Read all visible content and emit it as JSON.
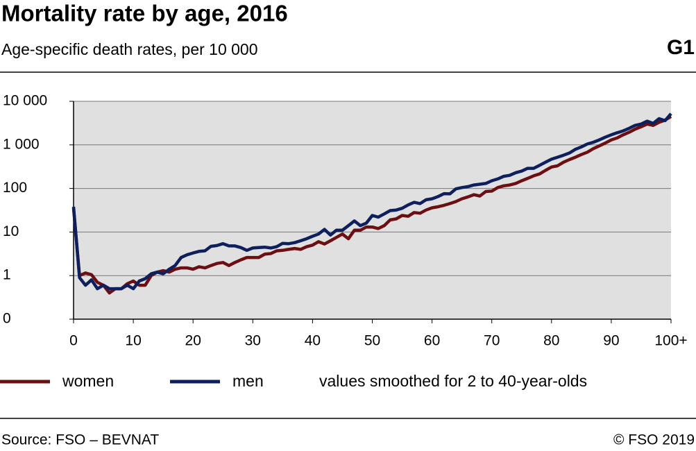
{
  "chart_data": {
    "type": "line",
    "title": "Mortality rate by age, 2016",
    "subtitle": "Age-specific death rates, per 10 000",
    "label": "G1",
    "note": "values smoothed for 2 to 40-year-olds",
    "source": "Source: FSO – BEVNAT",
    "copyright": "© FSO 2019",
    "x": [
      0,
      1,
      2,
      3,
      4,
      5,
      6,
      7,
      8,
      9,
      10,
      11,
      12,
      13,
      14,
      15,
      16,
      17,
      18,
      19,
      20,
      21,
      22,
      23,
      24,
      25,
      26,
      27,
      28,
      29,
      30,
      31,
      32,
      33,
      34,
      35,
      36,
      37,
      38,
      39,
      40,
      41,
      42,
      43,
      44,
      45,
      46,
      47,
      48,
      49,
      50,
      51,
      52,
      53,
      54,
      55,
      56,
      57,
      58,
      59,
      60,
      61,
      62,
      63,
      64,
      65,
      66,
      67,
      68,
      69,
      70,
      71,
      72,
      73,
      74,
      75,
      76,
      77,
      78,
      79,
      80,
      81,
      82,
      83,
      84,
      85,
      86,
      87,
      88,
      89,
      90,
      91,
      92,
      93,
      94,
      95,
      96,
      97,
      98,
      99,
      100
    ],
    "series": [
      {
        "name": "women",
        "color": "#6b0f12",
        "values": [
          35,
          1.0,
          1.15,
          1.05,
          0.7,
          0.6,
          0.4,
          0.5,
          0.5,
          0.65,
          0.75,
          0.6,
          0.6,
          1.0,
          1.2,
          1.3,
          1.2,
          1.4,
          1.5,
          1.5,
          1.4,
          1.6,
          1.5,
          1.7,
          1.9,
          2.0,
          1.7,
          2.0,
          2.3,
          2.6,
          2.6,
          2.6,
          3.1,
          3.2,
          3.7,
          3.8,
          4.0,
          4.2,
          4.0,
          4.6,
          5.0,
          6.0,
          5.3,
          6.3,
          7.5,
          9,
          7,
          11,
          11,
          13,
          13,
          12,
          14,
          19,
          20,
          24,
          23,
          28,
          27,
          32,
          36,
          38,
          41,
          45,
          50,
          58,
          64,
          72,
          67,
          85,
          87,
          105,
          115,
          120,
          130,
          150,
          170,
          195,
          215,
          260,
          310,
          330,
          400,
          460,
          520,
          600,
          680,
          820,
          950,
          1100,
          1300,
          1450,
          1700,
          1950,
          2300,
          2600,
          3000,
          2800,
          3300,
          3700,
          4500
        ]
      },
      {
        "name": "men",
        "color": "#0d1f5c",
        "values": [
          38,
          0.9,
          0.6,
          0.8,
          0.5,
          0.6,
          0.5,
          0.5,
          0.5,
          0.6,
          0.5,
          0.75,
          0.85,
          1.1,
          1.2,
          1.1,
          1.4,
          1.7,
          2.6,
          3.0,
          3.3,
          3.6,
          3.7,
          4.7,
          4.9,
          5.4,
          4.8,
          4.8,
          4.4,
          3.8,
          4.3,
          4.4,
          4.5,
          4.3,
          4.6,
          5.5,
          5.4,
          5.7,
          6.3,
          7.0,
          8,
          9,
          11.5,
          8.5,
          11,
          11,
          14,
          18,
          14,
          16,
          24,
          22,
          26,
          31,
          32,
          35,
          42,
          48,
          45,
          55,
          58,
          65,
          76,
          75,
          98,
          105,
          110,
          120,
          125,
          130,
          150,
          165,
          190,
          200,
          230,
          250,
          290,
          290,
          340,
          400,
          470,
          520,
          580,
          650,
          790,
          900,
          1050,
          1150,
          1300,
          1500,
          1700,
          1900,
          2100,
          2400,
          2800,
          3000,
          3500,
          3100,
          4000,
          3600,
          5200
        ]
      }
    ],
    "xlim": [
      0,
      100
    ],
    "xticks": [
      0,
      10,
      20,
      30,
      40,
      50,
      60,
      70,
      80,
      90,
      {
        "value": 100,
        "label": "100+"
      }
    ],
    "ylim": [
      0.1,
      10000
    ],
    "ylog": true,
    "yticks": [
      {
        "value": 0.1,
        "label": "0"
      },
      1,
      10,
      100,
      {
        "value": 1000,
        "label": "1 000"
      },
      {
        "value": 10000,
        "label": "10 000"
      }
    ],
    "grid": true
  }
}
